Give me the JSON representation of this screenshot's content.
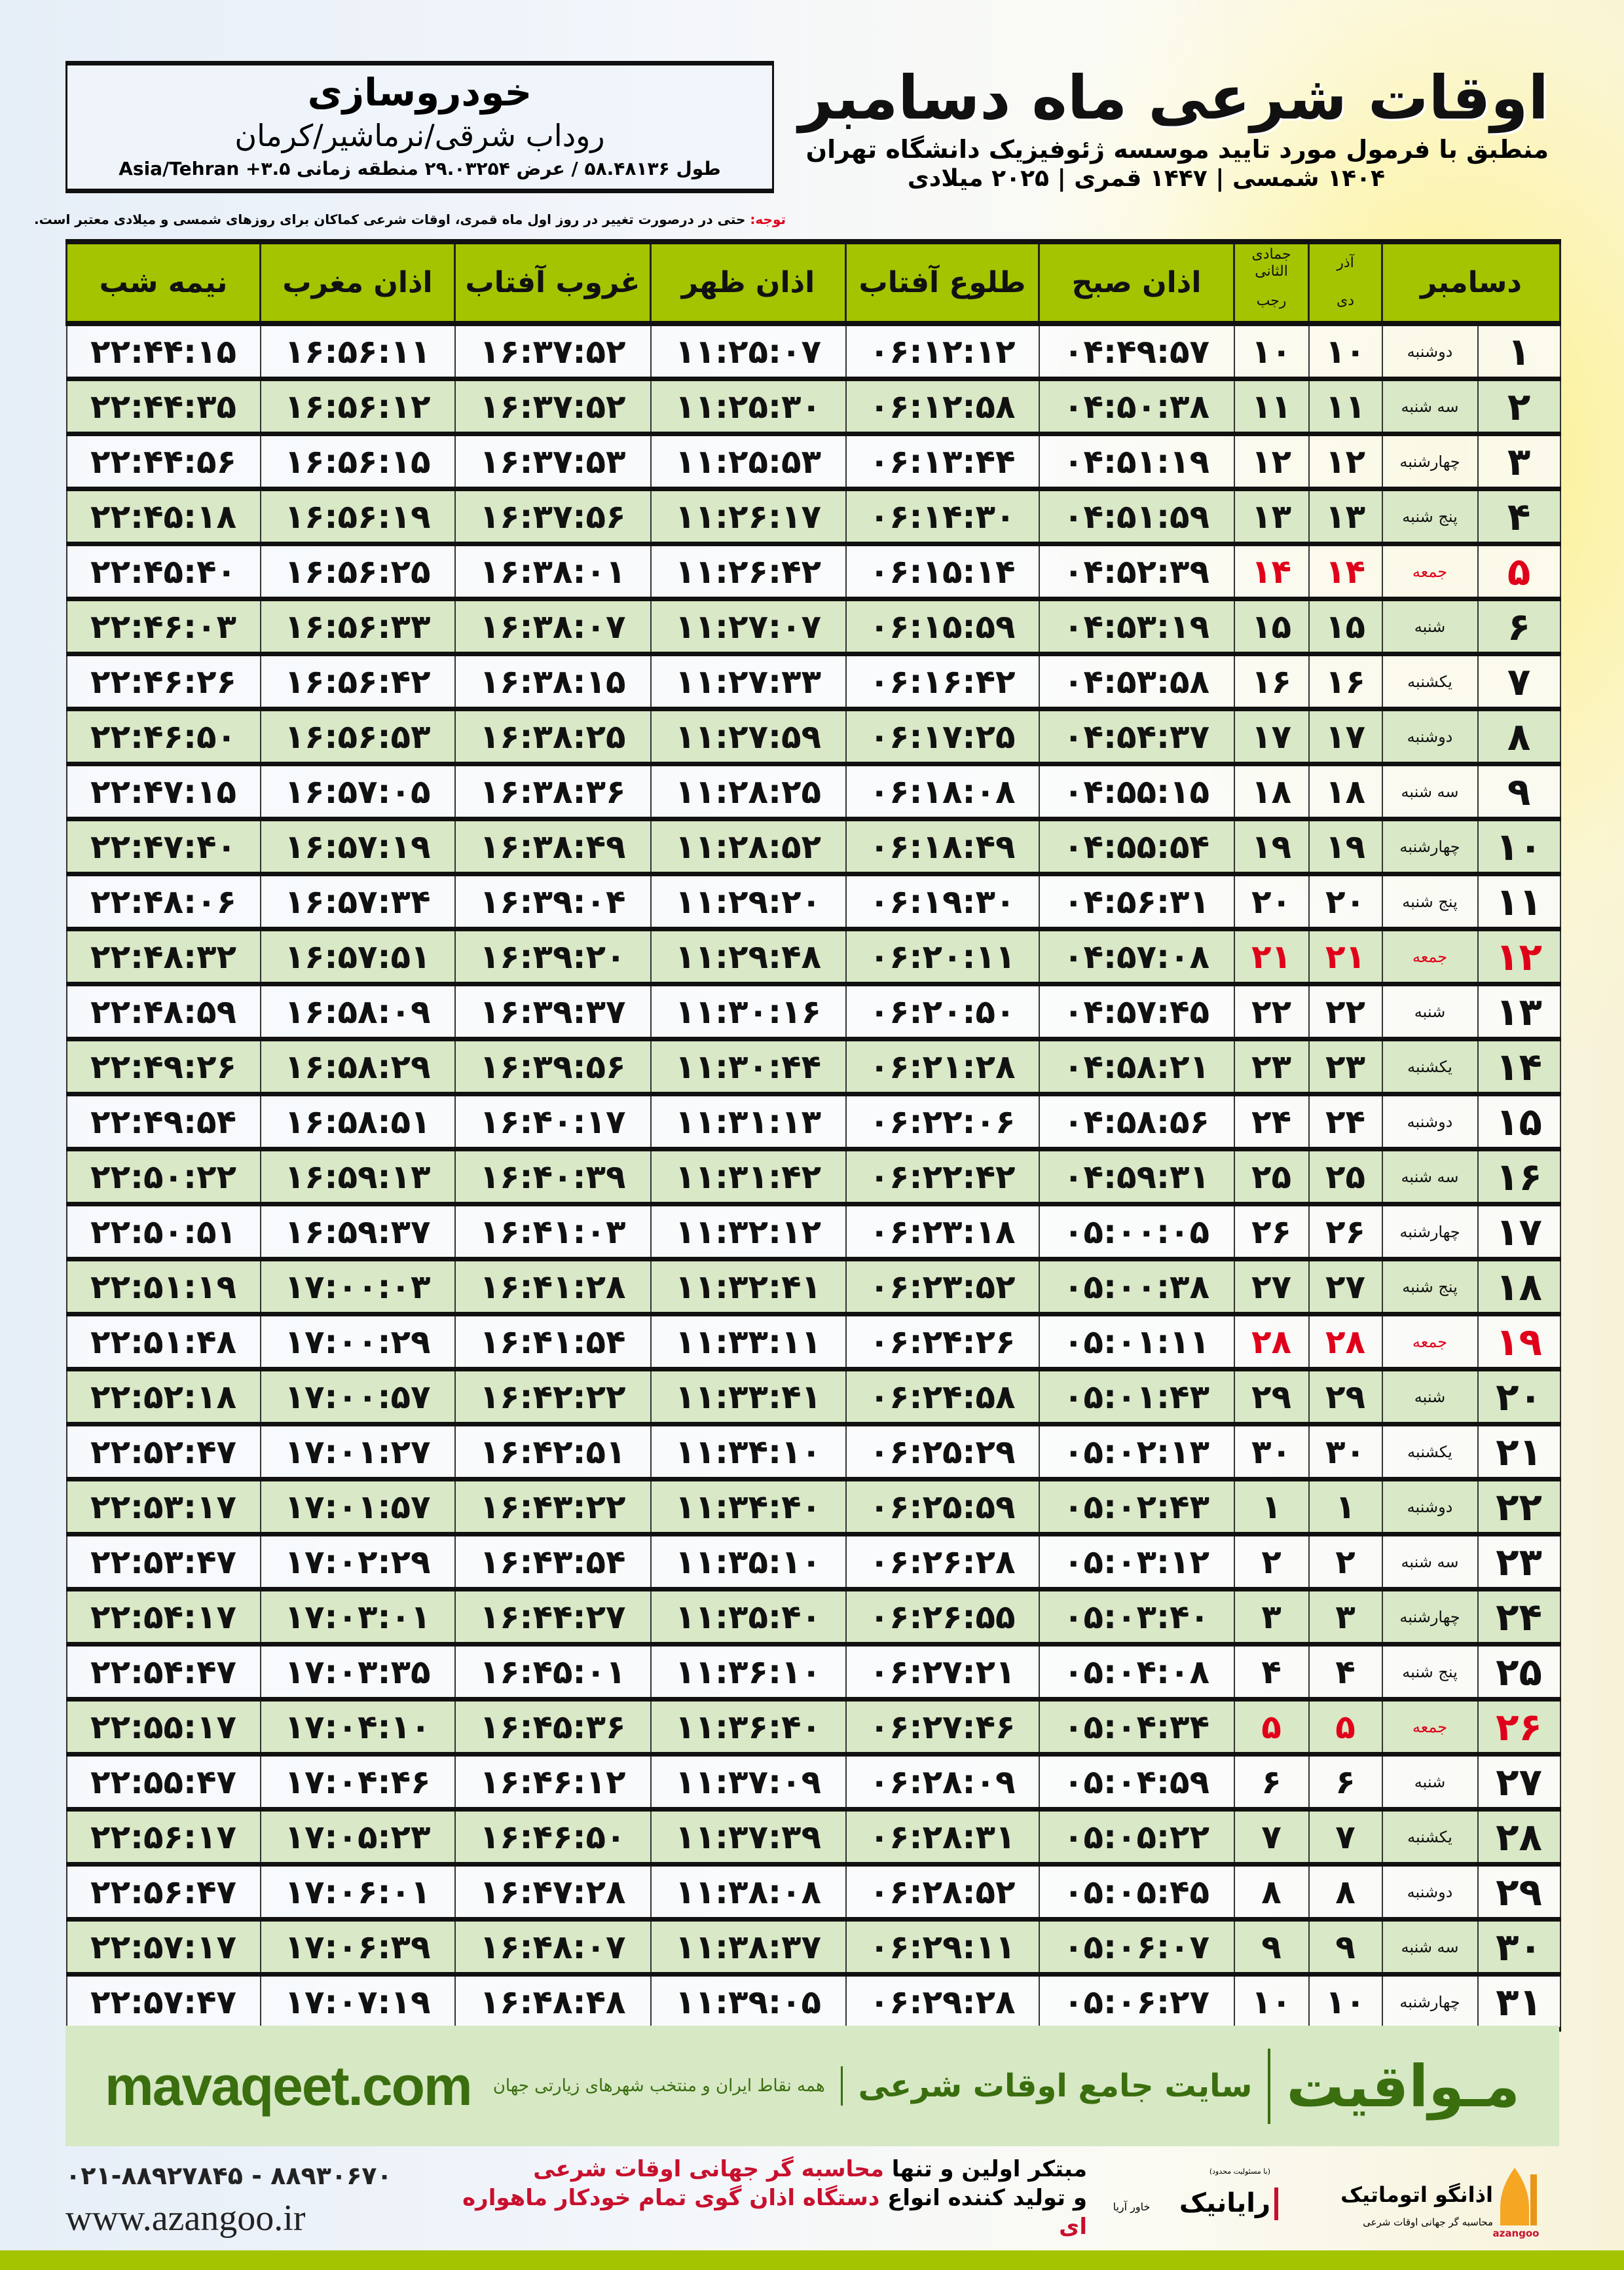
{
  "location": {
    "name": "خودروسازی",
    "region": "روداب شرقی/نرماشیر/کرمان",
    "coords": "طول ۵۸.۴۸۱۳۶ / عرض ۲۹.۰۳۲۵۴ منطقه زمانی ۳.۵+ Asia/Tehran"
  },
  "header": {
    "title": "اوقات شرعی ماه دسامبر",
    "subtitle": "منطبق با فرمول مورد تایید موسسه ژئوفیزیک دانشگاه تهران",
    "dateline": "۱۴۰۴ شمسی | ۱۴۴۷ قمری | ۲۰۲۵ میلادی"
  },
  "note": {
    "label": "توجه:",
    "text": " حتی در درصورت تغییر در روز اول ماه قمری، اوقات شرعی کماکان برای روزهای شمسی و میلادی معتبر است."
  },
  "table": {
    "columns": {
      "month": "دسامبر",
      "shamsi_top": "آذر",
      "shamsi_bottom": "دی",
      "hijri_top": "جمادی الثانی",
      "hijri_bottom": "رجب",
      "fajr": "اذان صبح",
      "sunrise": "طلوع آفتاب",
      "dhuhr": "اذان ظهر",
      "sunset": "غروب آفتاب",
      "maghrib": "اذان مغرب",
      "midnight": "نیمه شب"
    },
    "holiday_color": "#e0001a",
    "header_color": "#a4c400",
    "rows": [
      [
        "۱",
        "دوشنبه",
        "۱۰",
        "۱۰",
        "۰۴:۴۹:۵۷",
        "۰۶:۱۲:۱۲",
        "۱۱:۲۵:۰۷",
        "۱۶:۳۷:۵۲",
        "۱۶:۵۶:۱۱",
        "۲۲:۴۴:۱۵"
      ],
      [
        "۲",
        "سه شنبه",
        "۱۱",
        "۱۱",
        "۰۴:۵۰:۳۸",
        "۰۶:۱۲:۵۸",
        "۱۱:۲۵:۳۰",
        "۱۶:۳۷:۵۲",
        "۱۶:۵۶:۱۲",
        "۲۲:۴۴:۳۵"
      ],
      [
        "۳",
        "چهارشنبه",
        "۱۲",
        "۱۲",
        "۰۴:۵۱:۱۹",
        "۰۶:۱۳:۴۴",
        "۱۱:۲۵:۵۳",
        "۱۶:۳۷:۵۳",
        "۱۶:۵۶:۱۵",
        "۲۲:۴۴:۵۶"
      ],
      [
        "۴",
        "پنج شنبه",
        "۱۳",
        "۱۳",
        "۰۴:۵۱:۵۹",
        "۰۶:۱۴:۳۰",
        "۱۱:۲۶:۱۷",
        "۱۶:۳۷:۵۶",
        "۱۶:۵۶:۱۹",
        "۲۲:۴۵:۱۸"
      ],
      [
        "۵",
        "جمعه",
        "۱۴",
        "۱۴",
        "۰۴:۵۲:۳۹",
        "۰۶:۱۵:۱۴",
        "۱۱:۲۶:۴۲",
        "۱۶:۳۸:۰۱",
        "۱۶:۵۶:۲۵",
        "۲۲:۴۵:۴۰"
      ],
      [
        "۶",
        "شنبه",
        "۱۵",
        "۱۵",
        "۰۴:۵۳:۱۹",
        "۰۶:۱۵:۵۹",
        "۱۱:۲۷:۰۷",
        "۱۶:۳۸:۰۷",
        "۱۶:۵۶:۳۳",
        "۲۲:۴۶:۰۳"
      ],
      [
        "۷",
        "یکشنبه",
        "۱۶",
        "۱۶",
        "۰۴:۵۳:۵۸",
        "۰۶:۱۶:۴۲",
        "۱۱:۲۷:۳۳",
        "۱۶:۳۸:۱۵",
        "۱۶:۵۶:۴۲",
        "۲۲:۴۶:۲۶"
      ],
      [
        "۸",
        "دوشنبه",
        "۱۷",
        "۱۷",
        "۰۴:۵۴:۳۷",
        "۰۶:۱۷:۲۵",
        "۱۱:۲۷:۵۹",
        "۱۶:۳۸:۲۵",
        "۱۶:۵۶:۵۳",
        "۲۲:۴۶:۵۰"
      ],
      [
        "۹",
        "سه شنبه",
        "۱۸",
        "۱۸",
        "۰۴:۵۵:۱۵",
        "۰۶:۱۸:۰۸",
        "۱۱:۲۸:۲۵",
        "۱۶:۳۸:۳۶",
        "۱۶:۵۷:۰۵",
        "۲۲:۴۷:۱۵"
      ],
      [
        "۱۰",
        "چهارشنبه",
        "۱۹",
        "۱۹",
        "۰۴:۵۵:۵۴",
        "۰۶:۱۸:۴۹",
        "۱۱:۲۸:۵۲",
        "۱۶:۳۸:۴۹",
        "۱۶:۵۷:۱۹",
        "۲۲:۴۷:۴۰"
      ],
      [
        "۱۱",
        "پنج شنبه",
        "۲۰",
        "۲۰",
        "۰۴:۵۶:۳۱",
        "۰۶:۱۹:۳۰",
        "۱۱:۲۹:۲۰",
        "۱۶:۳۹:۰۴",
        "۱۶:۵۷:۳۴",
        "۲۲:۴۸:۰۶"
      ],
      [
        "۱۲",
        "جمعه",
        "۲۱",
        "۲۱",
        "۰۴:۵۷:۰۸",
        "۰۶:۲۰:۱۱",
        "۱۱:۲۹:۴۸",
        "۱۶:۳۹:۲۰",
        "۱۶:۵۷:۵۱",
        "۲۲:۴۸:۳۲"
      ],
      [
        "۱۳",
        "شنبه",
        "۲۲",
        "۲۲",
        "۰۴:۵۷:۴۵",
        "۰۶:۲۰:۵۰",
        "۱۱:۳۰:۱۶",
        "۱۶:۳۹:۳۷",
        "۱۶:۵۸:۰۹",
        "۲۲:۴۸:۵۹"
      ],
      [
        "۱۴",
        "یکشنبه",
        "۲۳",
        "۲۳",
        "۰۴:۵۸:۲۱",
        "۰۶:۲۱:۲۸",
        "۱۱:۳۰:۴۴",
        "۱۶:۳۹:۵۶",
        "۱۶:۵۸:۲۹",
        "۲۲:۴۹:۲۶"
      ],
      [
        "۱۵",
        "دوشنبه",
        "۲۴",
        "۲۴",
        "۰۴:۵۸:۵۶",
        "۰۶:۲۲:۰۶",
        "۱۱:۳۱:۱۳",
        "۱۶:۴۰:۱۷",
        "۱۶:۵۸:۵۱",
        "۲۲:۴۹:۵۴"
      ],
      [
        "۱۶",
        "سه شنبه",
        "۲۵",
        "۲۵",
        "۰۴:۵۹:۳۱",
        "۰۶:۲۲:۴۲",
        "۱۱:۳۱:۴۲",
        "۱۶:۴۰:۳۹",
        "۱۶:۵۹:۱۳",
        "۲۲:۵۰:۲۲"
      ],
      [
        "۱۷",
        "چهارشنبه",
        "۲۶",
        "۲۶",
        "۰۵:۰۰:۰۵",
        "۰۶:۲۳:۱۸",
        "۱۱:۳۲:۱۲",
        "۱۶:۴۱:۰۳",
        "۱۶:۵۹:۳۷",
        "۲۲:۵۰:۵۱"
      ],
      [
        "۱۸",
        "پنج شنبه",
        "۲۷",
        "۲۷",
        "۰۵:۰۰:۳۸",
        "۰۶:۲۳:۵۲",
        "۱۱:۳۲:۴۱",
        "۱۶:۴۱:۲۸",
        "۱۷:۰۰:۰۳",
        "۲۲:۵۱:۱۹"
      ],
      [
        "۱۹",
        "جمعه",
        "۲۸",
        "۲۸",
        "۰۵:۰۱:۱۱",
        "۰۶:۲۴:۲۶",
        "۱۱:۳۳:۱۱",
        "۱۶:۴۱:۵۴",
        "۱۷:۰۰:۲۹",
        "۲۲:۵۱:۴۸"
      ],
      [
        "۲۰",
        "شنبه",
        "۲۹",
        "۲۹",
        "۰۵:۰۱:۴۳",
        "۰۶:۲۴:۵۸",
        "۱۱:۳۳:۴۱",
        "۱۶:۴۲:۲۲",
        "۱۷:۰۰:۵۷",
        "۲۲:۵۲:۱۸"
      ],
      [
        "۲۱",
        "یکشنبه",
        "۳۰",
        "۳۰",
        "۰۵:۰۲:۱۳",
        "۰۶:۲۵:۲۹",
        "۱۱:۳۴:۱۰",
        "۱۶:۴۲:۵۱",
        "۱۷:۰۱:۲۷",
        "۲۲:۵۲:۴۷"
      ],
      [
        "۲۲",
        "دوشنبه",
        "۱",
        "۱",
        "۰۵:۰۲:۴۳",
        "۰۶:۲۵:۵۹",
        "۱۱:۳۴:۴۰",
        "۱۶:۴۳:۲۲",
        "۱۷:۰۱:۵۷",
        "۲۲:۵۳:۱۷"
      ],
      [
        "۲۳",
        "سه شنبه",
        "۲",
        "۲",
        "۰۵:۰۳:۱۲",
        "۰۶:۲۶:۲۸",
        "۱۱:۳۵:۱۰",
        "۱۶:۴۳:۵۴",
        "۱۷:۰۲:۲۹",
        "۲۲:۵۳:۴۷"
      ],
      [
        "۲۴",
        "چهارشنبه",
        "۳",
        "۳",
        "۰۵:۰۳:۴۰",
        "۰۶:۲۶:۵۵",
        "۱۱:۳۵:۴۰",
        "۱۶:۴۴:۲۷",
        "۱۷:۰۳:۰۱",
        "۲۲:۵۴:۱۷"
      ],
      [
        "۲۵",
        "پنج شنبه",
        "۴",
        "۴",
        "۰۵:۰۴:۰۸",
        "۰۶:۲۷:۲۱",
        "۱۱:۳۶:۱۰",
        "۱۶:۴۵:۰۱",
        "۱۷:۰۳:۳۵",
        "۲۲:۵۴:۴۷"
      ],
      [
        "۲۶",
        "جمعه",
        "۵",
        "۵",
        "۰۵:۰۴:۳۴",
        "۰۶:۲۷:۴۶",
        "۱۱:۳۶:۴۰",
        "۱۶:۴۵:۳۶",
        "۱۷:۰۴:۱۰",
        "۲۲:۵۵:۱۷"
      ],
      [
        "۲۷",
        "شنبه",
        "۶",
        "۶",
        "۰۵:۰۴:۵۹",
        "۰۶:۲۸:۰۹",
        "۱۱:۳۷:۰۹",
        "۱۶:۴۶:۱۲",
        "۱۷:۰۴:۴۶",
        "۲۲:۵۵:۴۷"
      ],
      [
        "۲۸",
        "یکشنبه",
        "۷",
        "۷",
        "۰۵:۰۵:۲۲",
        "۰۶:۲۸:۳۱",
        "۱۱:۳۷:۳۹",
        "۱۶:۴۶:۵۰",
        "۱۷:۰۵:۲۳",
        "۲۲:۵۶:۱۷"
      ],
      [
        "۲۹",
        "دوشنبه",
        "۸",
        "۸",
        "۰۵:۰۵:۴۵",
        "۰۶:۲۸:۵۲",
        "۱۱:۳۸:۰۸",
        "۱۶:۴۷:۲۸",
        "۱۷:۰۶:۰۱",
        "۲۲:۵۶:۴۷"
      ],
      [
        "۳۰",
        "سه شنبه",
        "۹",
        "۹",
        "۰۵:۰۶:۰۷",
        "۰۶:۲۹:۱۱",
        "۱۱:۳۸:۳۷",
        "۱۶:۴۸:۰۷",
        "۱۷:۰۶:۳۹",
        "۲۲:۵۷:۱۷"
      ],
      [
        "۳۱",
        "چهارشنبه",
        "۱۰",
        "۱۰",
        "۰۵:۰۶:۲۷",
        "۰۶:۲۹:۲۸",
        "۱۱:۳۹:۰۵",
        "۱۶:۴۸:۴۸",
        "۱۷:۰۷:۱۹",
        "۲۲:۵۷:۴۷"
      ]
    ]
  },
  "banner": {
    "brand": "مـواقیت",
    "site": "سایت جامع اوقات شرعی",
    "coverage": "همه نقاط ایران و منتخب شهرهای زیارتی جهان",
    "url": "mavaqeet.com",
    "color": "#3a6e0e"
  },
  "footer": {
    "phone": "۰۲۱-۸۸۹۲۷۸۴۵ - ۸۸۹۳۰۶۷۰",
    "web": "www.azangoo.ir",
    "line1_prefix": "مبتکر اولین و تنها ",
    "line1_highlight": "محاسبه گر جهانی اوقات شرعی",
    "line2_prefix": "و تولید کننده انواع ",
    "line2_highlight": "دستگاه اذان گوی تمام خودکار ماهواره ای",
    "rayanik_logo": {
      "name": "رایانیک",
      "sub": "خاور آریا",
      "note": "(با مسئولیت محدود)"
    },
    "azangoo_logo": {
      "name": "اذانگو اتوماتیک",
      "sub": "محاسبه گر جهانی اوقات شرعی",
      "latin": "azangoo"
    }
  }
}
